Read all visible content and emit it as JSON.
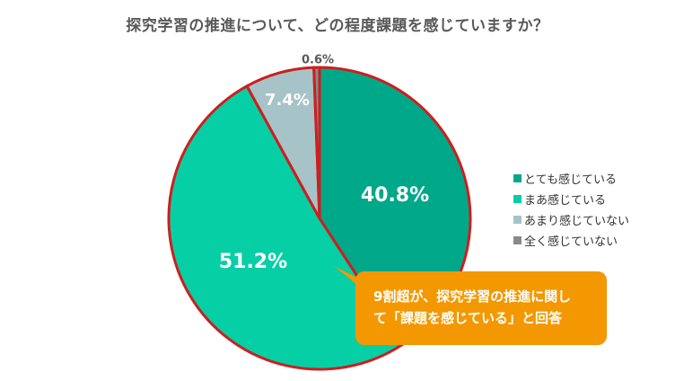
{
  "chart_data": {
    "type": "pie",
    "title": "探究学習の推進について、どの程度課題を感じていますか？",
    "slices": [
      {
        "label": "とても感じている",
        "value": 40.8,
        "display": "40.8%",
        "color": "#00a88a"
      },
      {
        "label": "まあ感じている",
        "value": 51.2,
        "display": "51.2%",
        "color": "#06cfa6"
      },
      {
        "label": "あまり感じていない",
        "value": 7.4,
        "display": "7.4%",
        "color": "#a6c3c8"
      },
      {
        "label": "全く感じていない",
        "value": 0.6,
        "display": "0.6%",
        "color": "#8a8a8a"
      }
    ],
    "start_angle": "12 o'clock, clockwise",
    "legend_position": "right",
    "border_color": "#cc1f1f"
  },
  "callout": {
    "line1": "9割超が、探究学習の推進に関し",
    "line2": "て「課題を感じている」と回答",
    "color": "#f39800"
  }
}
